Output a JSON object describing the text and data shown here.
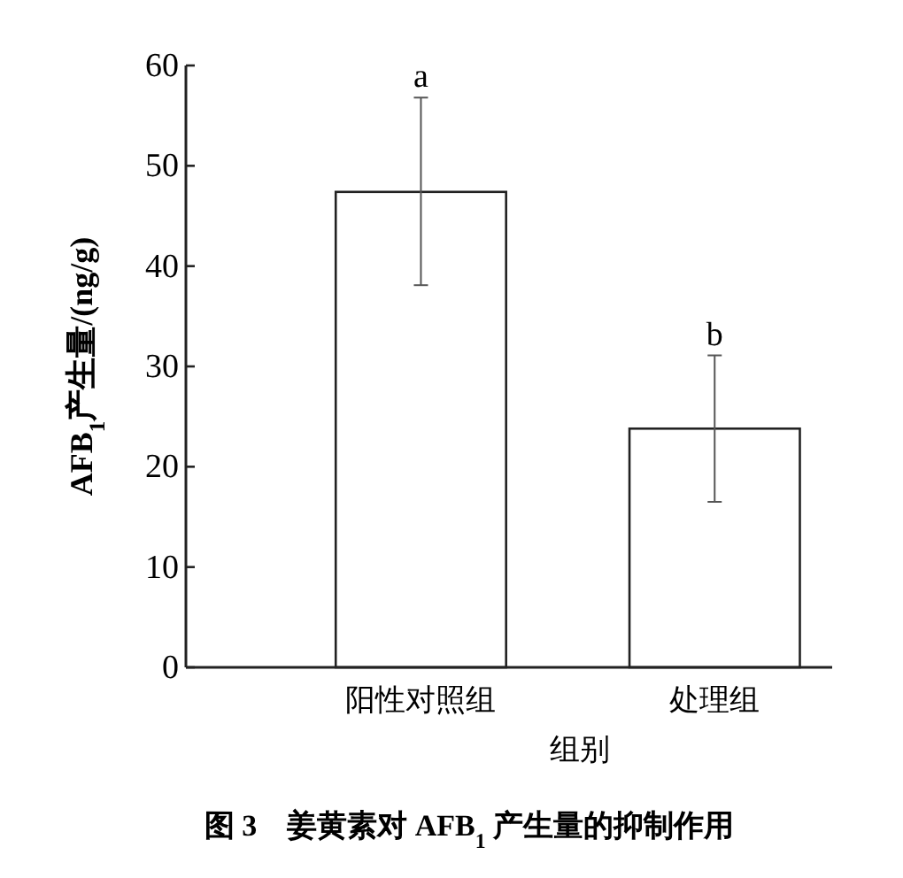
{
  "chart_data": {
    "type": "bar",
    "title": "图 3　姜黄素对 AFB$_{1}$ 产生量的抑制作用",
    "categories": [
      "阳性对照组",
      "处理组"
    ],
    "values": [
      47.4,
      23.8
    ],
    "errors": [
      [
        38.1,
        56.8
      ],
      [
        16.5,
        31.1
      ]
    ],
    "color": "#ffffff",
    "xlabel": "组别",
    "ylabel": "AFB$_{1}$产生量/(ng/g)",
    "ylim": [
      0,
      60
    ],
    "yticks": [
      0,
      10,
      20,
      30,
      40,
      50,
      60
    ],
    "annotations": [
      {
        "text": "a",
        "x": "阳性对照组",
        "y": 56.8
      },
      {
        "text": "b",
        "x": "处理组",
        "y": 31.1
      }
    ]
  }
}
